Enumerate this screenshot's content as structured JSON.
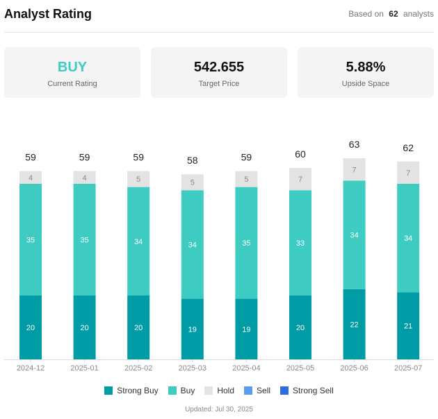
{
  "header": {
    "title": "Analyst Rating",
    "based_on_prefix": "Based on",
    "analyst_count": "62",
    "based_on_suffix": "analysts"
  },
  "cards": [
    {
      "value": "BUY",
      "label": "Current Rating",
      "value_color": "#3ecbc2"
    },
    {
      "value": "542.655",
      "label": "Target Price"
    },
    {
      "value": "5.88%",
      "label": "Upside Space"
    }
  ],
  "chart_data": {
    "type": "bar",
    "stacked": true,
    "categories": [
      "2024-12",
      "2025-01",
      "2025-02",
      "2025-03",
      "2025-04",
      "2025-05",
      "2025-06",
      "2025-07"
    ],
    "totals": [
      59,
      59,
      59,
      58,
      59,
      60,
      63,
      62
    ],
    "series": [
      {
        "name": "Strong Buy",
        "color": "#009ca6",
        "values": [
          20,
          20,
          20,
          19,
          19,
          20,
          22,
          21
        ]
      },
      {
        "name": "Buy",
        "color": "#3ecbc2",
        "values": [
          35,
          35,
          34,
          34,
          35,
          33,
          34,
          34
        ]
      },
      {
        "name": "Hold",
        "color": "#e3e3e3",
        "values": [
          4,
          4,
          5,
          5,
          5,
          7,
          7,
          7
        ]
      },
      {
        "name": "Sell",
        "color": "#5b9cf0",
        "values": [
          0,
          0,
          0,
          0,
          0,
          0,
          0,
          0
        ]
      },
      {
        "name": "Strong Sell",
        "color": "#2b6de0",
        "values": [
          0,
          0,
          0,
          0,
          0,
          0,
          0,
          0
        ]
      }
    ],
    "ylim": [
      0,
      70
    ]
  },
  "footer": {
    "updated": "Updated: Jul 30, 2025"
  }
}
